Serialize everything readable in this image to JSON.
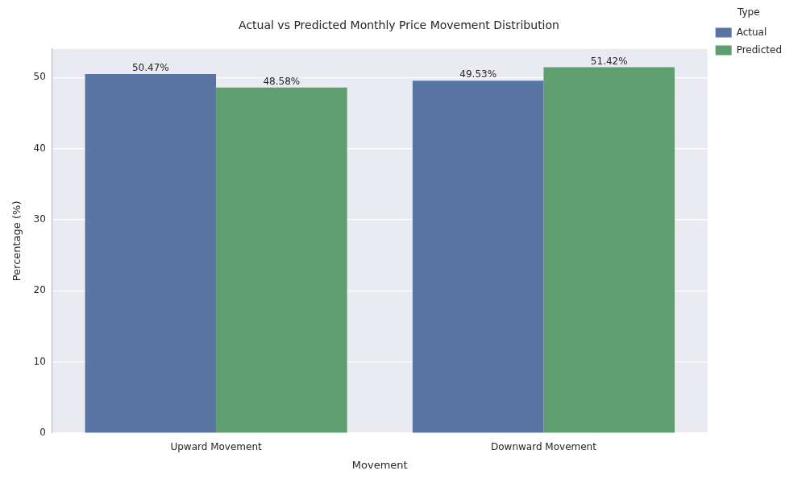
{
  "chart_data": {
    "type": "bar",
    "title": "Actual vs Predicted Monthly Price Movement Distribution",
    "x_label": "Movement",
    "y_label": "Percentage (%)",
    "legend_title": "Type",
    "categories": [
      "Upward Movement",
      "Downward Movement"
    ],
    "series": [
      {
        "name": "Actual",
        "color": "#5875a4",
        "values": [
          50.47,
          49.53
        ],
        "value_labels": [
          "50.47%",
          "49.53%"
        ]
      },
      {
        "name": "Predicted",
        "color": "#5f9e6e",
        "values": [
          48.58,
          51.42
        ],
        "value_labels": [
          "48.58%",
          "51.42%"
        ]
      }
    ],
    "ylim": [
      0,
      54
    ],
    "yticks": [
      0,
      10,
      20,
      30,
      40,
      50
    ],
    "grid": true,
    "legend": "right",
    "data_labels": true
  }
}
